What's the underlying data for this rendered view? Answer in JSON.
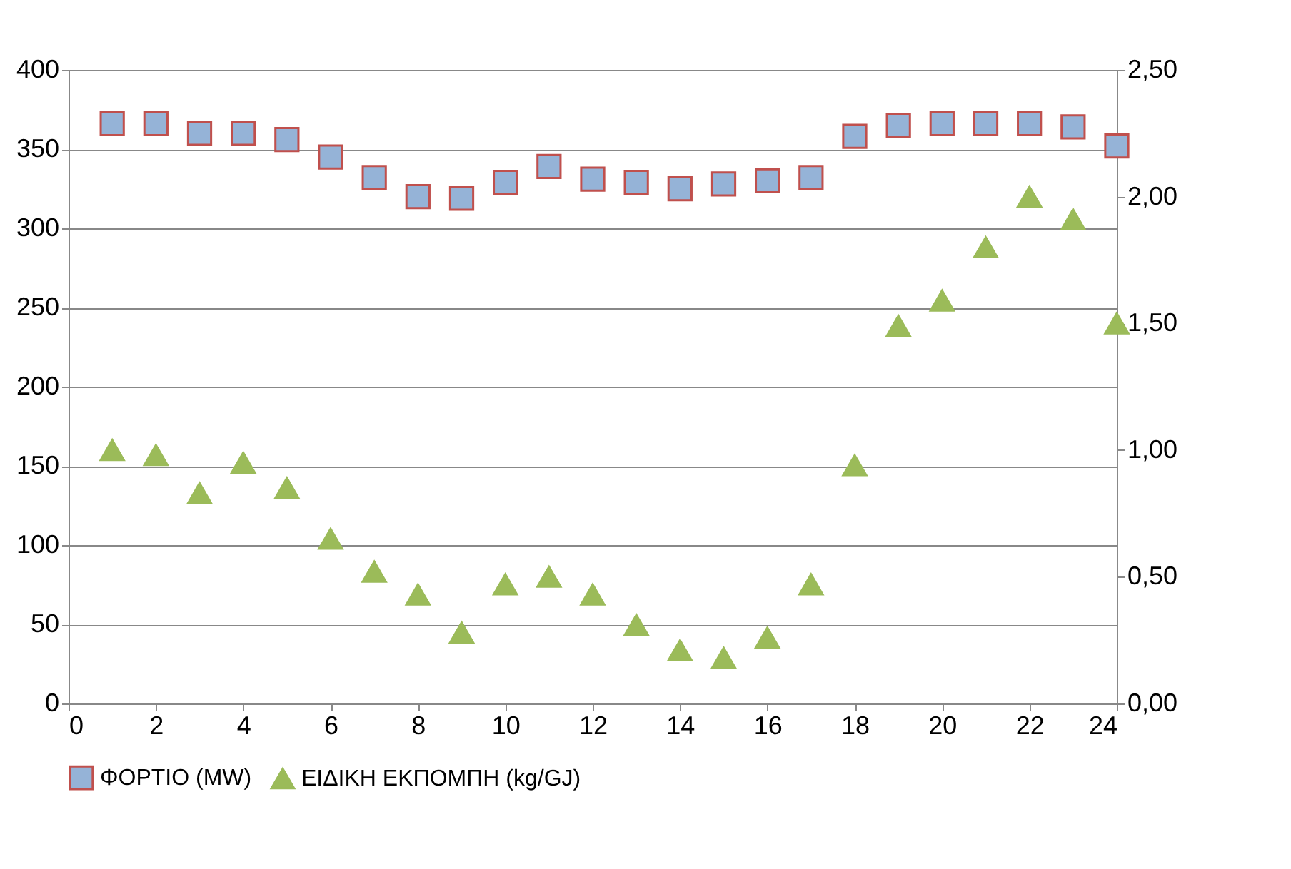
{
  "chart_data": {
    "type": "scatter",
    "x": [
      1,
      2,
      3,
      4,
      5,
      6,
      7,
      8,
      9,
      10,
      11,
      12,
      13,
      14,
      15,
      16,
      17,
      18,
      19,
      20,
      21,
      22,
      23,
      24
    ],
    "series": [
      {
        "name": "ΦΟΡΤΙΟ (MW)",
        "color": "#95b3d7",
        "marker": "square",
        "values": [
          366,
          366,
          360,
          360,
          356,
          345,
          332,
          320,
          319,
          329,
          339,
          331,
          329,
          325,
          328,
          330,
          332,
          358,
          365,
          366,
          366,
          366,
          364,
          352
        ]
      },
      {
        "name": "ΕΙΔΙΚΗ ΕΚΠΟΜΠΗ (kg/GJ)",
        "color": "#9bbb59",
        "marker": "triangle",
        "axis": "y2",
        "values": [
          1.0,
          0.98,
          0.83,
          0.95,
          0.85,
          0.65,
          0.52,
          0.43,
          0.28,
          0.47,
          0.5,
          0.43,
          0.31,
          0.21,
          0.18,
          0.26,
          0.47,
          0.94,
          1.49,
          1.59,
          1.8,
          2.0,
          1.91,
          1.5
        ]
      }
    ],
    "xlim": [
      0,
      24
    ],
    "xticks": [
      0,
      2,
      4,
      6,
      8,
      10,
      12,
      14,
      16,
      18,
      20,
      22,
      24
    ],
    "ylim": [
      0,
      400
    ],
    "yticks": [
      0,
      50,
      100,
      150,
      200,
      250,
      300,
      350,
      400
    ],
    "y2lim": [
      0,
      2.5
    ],
    "y2ticks": [
      {
        "value": 0,
        "label": "0,00"
      },
      {
        "value": 0.5,
        "label": "0,50"
      },
      {
        "value": 1.0,
        "label": "1,00"
      },
      {
        "value": 1.5,
        "label": "1,50"
      },
      {
        "value": 2.0,
        "label": "2,00"
      },
      {
        "value": 2.5,
        "label": "2,50"
      }
    ],
    "grid": "y",
    "legend": "bottom"
  }
}
